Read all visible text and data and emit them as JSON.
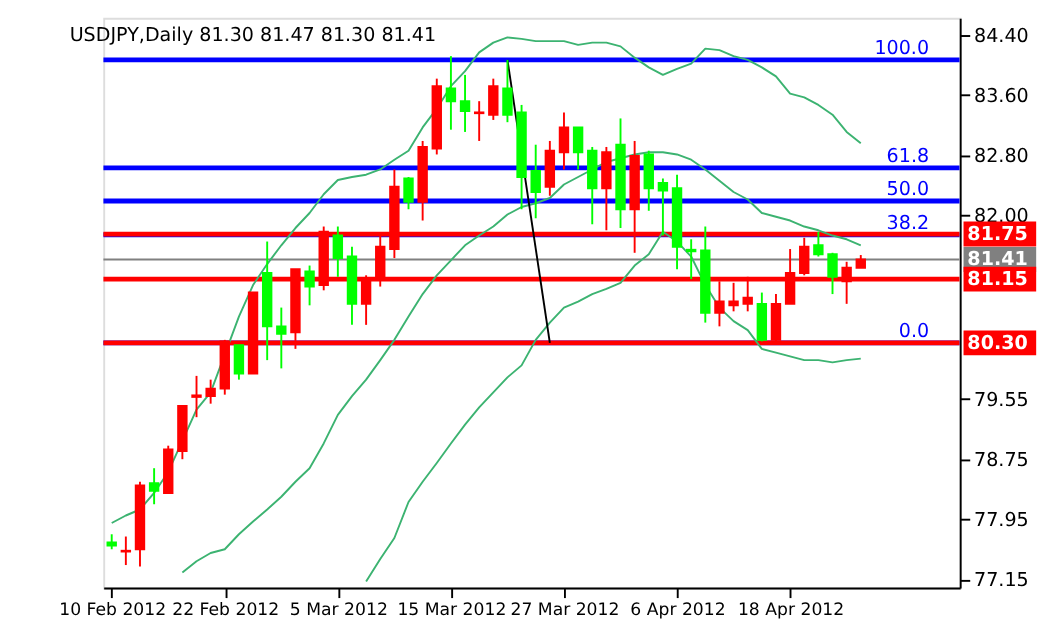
{
  "chart_data": {
    "type": "candlestick",
    "title": "USDJPY,Daily  81.30 81.47 81.30 81.41",
    "categories": [
      "10 Feb 2012",
      null,
      null,
      null,
      null,
      null,
      null,
      null,
      "22 Feb 2012",
      null,
      null,
      null,
      null,
      null,
      null,
      null,
      "5 Mar 2012",
      null,
      null,
      null,
      null,
      null,
      null,
      null,
      "15 Mar 2012",
      null,
      null,
      null,
      null,
      null,
      null,
      null,
      "27 Mar 2012",
      null,
      null,
      null,
      null,
      null,
      null,
      null,
      "6 Apr 2012",
      null,
      null,
      null,
      null,
      null,
      null,
      null,
      "18 Apr 2012",
      null,
      null,
      null,
      null,
      null
    ],
    "ohlc": [
      [
        77.64,
        77.75,
        77.55,
        77.6
      ],
      [
        77.52,
        77.72,
        77.34,
        77.53
      ],
      [
        77.55,
        78.45,
        77.32,
        78.4
      ],
      [
        78.43,
        78.63,
        78.15,
        78.33
      ],
      [
        78.3,
        78.93,
        78.3,
        78.88
      ],
      [
        78.86,
        79.46,
        78.75,
        79.46
      ],
      [
        79.58,
        79.86,
        79.31,
        79.6
      ],
      [
        79.59,
        79.81,
        79.49,
        79.69
      ],
      [
        79.69,
        80.34,
        79.61,
        80.32
      ],
      [
        80.27,
        80.27,
        79.81,
        79.89
      ],
      [
        79.89,
        80.97,
        79.89,
        80.97
      ],
      [
        81.23,
        81.65,
        80.07,
        80.52
      ],
      [
        80.52,
        80.77,
        79.96,
        80.42
      ],
      [
        80.44,
        81.28,
        80.22,
        81.28
      ],
      [
        81.25,
        81.33,
        80.8,
        81.05
      ],
      [
        81.07,
        81.85,
        81.0,
        81.78
      ],
      [
        81.73,
        81.85,
        81.18,
        81.43
      ],
      [
        81.45,
        81.58,
        80.54,
        80.82
      ],
      [
        80.82,
        81.2,
        80.54,
        81.12
      ],
      [
        81.15,
        81.73,
        81.05,
        81.58
      ],
      [
        81.55,
        82.61,
        81.43,
        82.38
      ],
      [
        82.49,
        82.51,
        82.08,
        82.18
      ],
      [
        82.18,
        82.99,
        81.93,
        82.91
      ],
      [
        82.89,
        83.82,
        82.81,
        83.72
      ],
      [
        83.69,
        84.12,
        83.14,
        83.52
      ],
      [
        83.52,
        83.87,
        83.11,
        83.39
      ],
      [
        83.36,
        83.52,
        82.99,
        83.37
      ],
      [
        83.34,
        83.82,
        83.27,
        83.72
      ],
      [
        83.69,
        84.07,
        83.24,
        83.34
      ],
      [
        83.37,
        83.47,
        82.08,
        82.51
      ],
      [
        82.59,
        82.94,
        81.96,
        82.31
      ],
      [
        82.38,
        82.99,
        82.26,
        82.86
      ],
      [
        82.84,
        83.37,
        82.61,
        83.17
      ],
      [
        83.17,
        83.17,
        82.61,
        82.84
      ],
      [
        82.86,
        82.91,
        81.88,
        82.36
      ],
      [
        82.36,
        82.91,
        81.8,
        82.84
      ],
      [
        82.94,
        83.29,
        81.83,
        82.08
      ],
      [
        82.08,
        82.99,
        81.5,
        82.79
      ],
      [
        82.81,
        82.86,
        82.06,
        82.36
      ],
      [
        82.43,
        82.49,
        81.73,
        82.33
      ],
      [
        82.36,
        82.54,
        81.28,
        81.58
      ],
      [
        81.54,
        81.68,
        81.15,
        81.52
      ],
      [
        81.53,
        81.85,
        80.57,
        80.7
      ],
      [
        80.7,
        81.12,
        80.52,
        80.85
      ],
      [
        80.8,
        81.1,
        80.72,
        80.85
      ],
      [
        80.82,
        81.18,
        80.72,
        80.9
      ],
      [
        80.82,
        80.97,
        80.32,
        80.34
      ],
      [
        80.34,
        80.95,
        80.32,
        80.82
      ],
      [
        80.82,
        81.55,
        80.82,
        81.23
      ],
      [
        81.23,
        81.7,
        81.2,
        81.58
      ],
      [
        81.6,
        81.78,
        81.45,
        81.48
      ],
      [
        81.48,
        81.5,
        80.95,
        81.18
      ],
      [
        81.12,
        81.38,
        80.82,
        81.3
      ],
      [
        81.3,
        81.47,
        81.3,
        81.41
      ]
    ],
    "colors": [
      "#00ff00",
      "#ff0000",
      "#ff0000",
      "#00ff00",
      "#ff0000",
      "#ff0000",
      "#ff0000",
      "#ff0000",
      "#ff0000",
      "#00ff00",
      "#ff0000",
      "#00ff00",
      "#00ff00",
      "#ff0000",
      "#00ff00",
      "#ff0000",
      "#00ff00",
      "#00ff00",
      "#ff0000",
      "#ff0000",
      "#ff0000",
      "#00ff00",
      "#ff0000",
      "#ff0000",
      "#00ff00",
      "#00ff00",
      "#ff0000",
      "#ff0000",
      "#00ff00",
      "#00ff00",
      "#00ff00",
      "#ff0000",
      "#ff0000",
      "#00ff00",
      "#00ff00",
      "#ff0000",
      "#00ff00",
      "#ff0000",
      "#00ff00",
      "#00ff00",
      "#00ff00",
      "#00ff00",
      "#00ff00",
      "#ff0000",
      "#ff0000",
      "#ff0000",
      "#00ff00",
      "#ff0000",
      "#ff0000",
      "#ff0000",
      "#00ff00",
      "#00ff00",
      "#ff0000",
      "#ff0000"
    ],
    "series": [
      {
        "type": "line",
        "color": "#3cb371",
        "values": [
          77.9,
          78.0,
          78.08,
          78.3,
          78.58,
          null,
          79.41,
          79.64,
          null,
          80.65,
          81.07,
          81.35,
          81.6,
          81.83,
          82.03,
          82.28,
          82.47,
          82.51,
          82.54,
          82.61,
          82.74,
          82.86,
          83.17,
          83.42,
          83.72,
          83.92,
          84.17,
          84.3,
          84.37,
          84.35,
          84.32,
          84.32,
          84.32,
          84.27,
          84.3,
          84.3,
          84.25,
          84.1,
          83.97,
          83.87,
          83.95,
          84.02,
          84.22,
          84.2,
          84.12,
          84.07,
          83.97,
          83.85,
          83.62,
          83.57,
          83.47,
          83.34,
          83.11,
          82.96
        ]
      },
      {
        "type": "line",
        "color": "#3cb371",
        "values": [
          null,
          null,
          null,
          null,
          null,
          77.24,
          77.39,
          77.5,
          77.55,
          77.75,
          77.92,
          78.08,
          78.25,
          78.45,
          78.63,
          78.96,
          79.34,
          79.59,
          79.81,
          80.07,
          80.34,
          80.65,
          80.95,
          81.2,
          81.4,
          81.6,
          81.73,
          81.85,
          82.01,
          82.11,
          82.16,
          82.23,
          82.41,
          82.51,
          82.61,
          82.71,
          82.76,
          82.81,
          82.84,
          82.84,
          82.81,
          82.74,
          82.61,
          82.46,
          82.31,
          82.21,
          82.03,
          81.98,
          81.93,
          81.85,
          81.8,
          81.73,
          81.68,
          81.6
        ]
      },
      {
        "type": "line",
        "color": "#3cb371",
        "values": [
          null,
          null,
          null,
          null,
          null,
          null,
          null,
          null,
          null,
          null,
          null,
          null,
          null,
          null,
          null,
          null,
          null,
          null,
          77.12,
          77.42,
          77.7,
          78.18,
          78.45,
          78.7,
          78.96,
          79.21,
          79.44,
          79.64,
          79.84,
          80.0,
          80.34,
          80.57,
          80.77,
          80.85,
          80.95,
          81.02,
          81.1,
          81.33,
          81.48,
          81.78,
          81.65,
          81.45,
          81.07,
          80.77,
          80.59,
          80.47,
          80.22,
          80.17,
          80.12,
          80.07,
          80.07,
          80.04,
          80.07,
          80.09
        ]
      },
      {
        "type": "line",
        "color": "#000000",
        "values": [
          null,
          null,
          null,
          null,
          null,
          null,
          null,
          null,
          null,
          null,
          null,
          null,
          null,
          null,
          null,
          null,
          null,
          null,
          null,
          null,
          null,
          null,
          null,
          null,
          null,
          null,
          null,
          null,
          84.07,
          null,
          null,
          80.3,
          null,
          null,
          null,
          null,
          null,
          null,
          null,
          null,
          null,
          null,
          null,
          null,
          null,
          null,
          null,
          null,
          null,
          null,
          null,
          null,
          null,
          null
        ]
      }
    ],
    "ylim": [
      77.04,
      84.63
    ],
    "yticks": [
      {
        "value": 84.4,
        "label": "84.40"
      },
      {
        "value": 83.6,
        "label": "83.60"
      },
      {
        "value": 82.8,
        "label": "82.80"
      },
      {
        "value": 82.0,
        "label": "82.00"
      },
      {
        "value": 79.55,
        "label": "79.55"
      },
      {
        "value": 78.75,
        "label": "78.75"
      },
      {
        "value": 77.95,
        "label": "77.95"
      },
      {
        "value": 77.15,
        "label": "77.15"
      }
    ],
    "ref_lines": [
      {
        "axis": "y",
        "value": 84.07,
        "color": "#0000ff"
      },
      {
        "axis": "y",
        "value": 82.63,
        "color": "#0000ff"
      },
      {
        "axis": "y",
        "value": 82.19,
        "color": "#0000ff"
      },
      {
        "axis": "y",
        "value": 81.74,
        "color": "#0000ff"
      },
      {
        "axis": "y",
        "value": 80.3,
        "color": "#0000ff"
      },
      {
        "axis": "y",
        "value": 81.41,
        "label": "81.41",
        "color": "#808080"
      },
      {
        "axis": "y",
        "value": 81.75,
        "label": "81.75",
        "color": "#ff0000"
      },
      {
        "axis": "y",
        "value": 81.15,
        "label": "81.15",
        "color": "#ff0000"
      },
      {
        "axis": "y",
        "value": 80.3,
        "label": "80.30",
        "color": "#ff0000"
      }
    ],
    "annotations": [
      {
        "text": "100.0",
        "y": 84.07
      },
      {
        "text": "61.8",
        "y": 82.63
      },
      {
        "text": "50.0",
        "y": 82.19
      },
      {
        "text": "38.2",
        "y": 81.74
      },
      {
        "text": "0.0",
        "y": 80.3
      }
    ],
    "grid": false
  }
}
